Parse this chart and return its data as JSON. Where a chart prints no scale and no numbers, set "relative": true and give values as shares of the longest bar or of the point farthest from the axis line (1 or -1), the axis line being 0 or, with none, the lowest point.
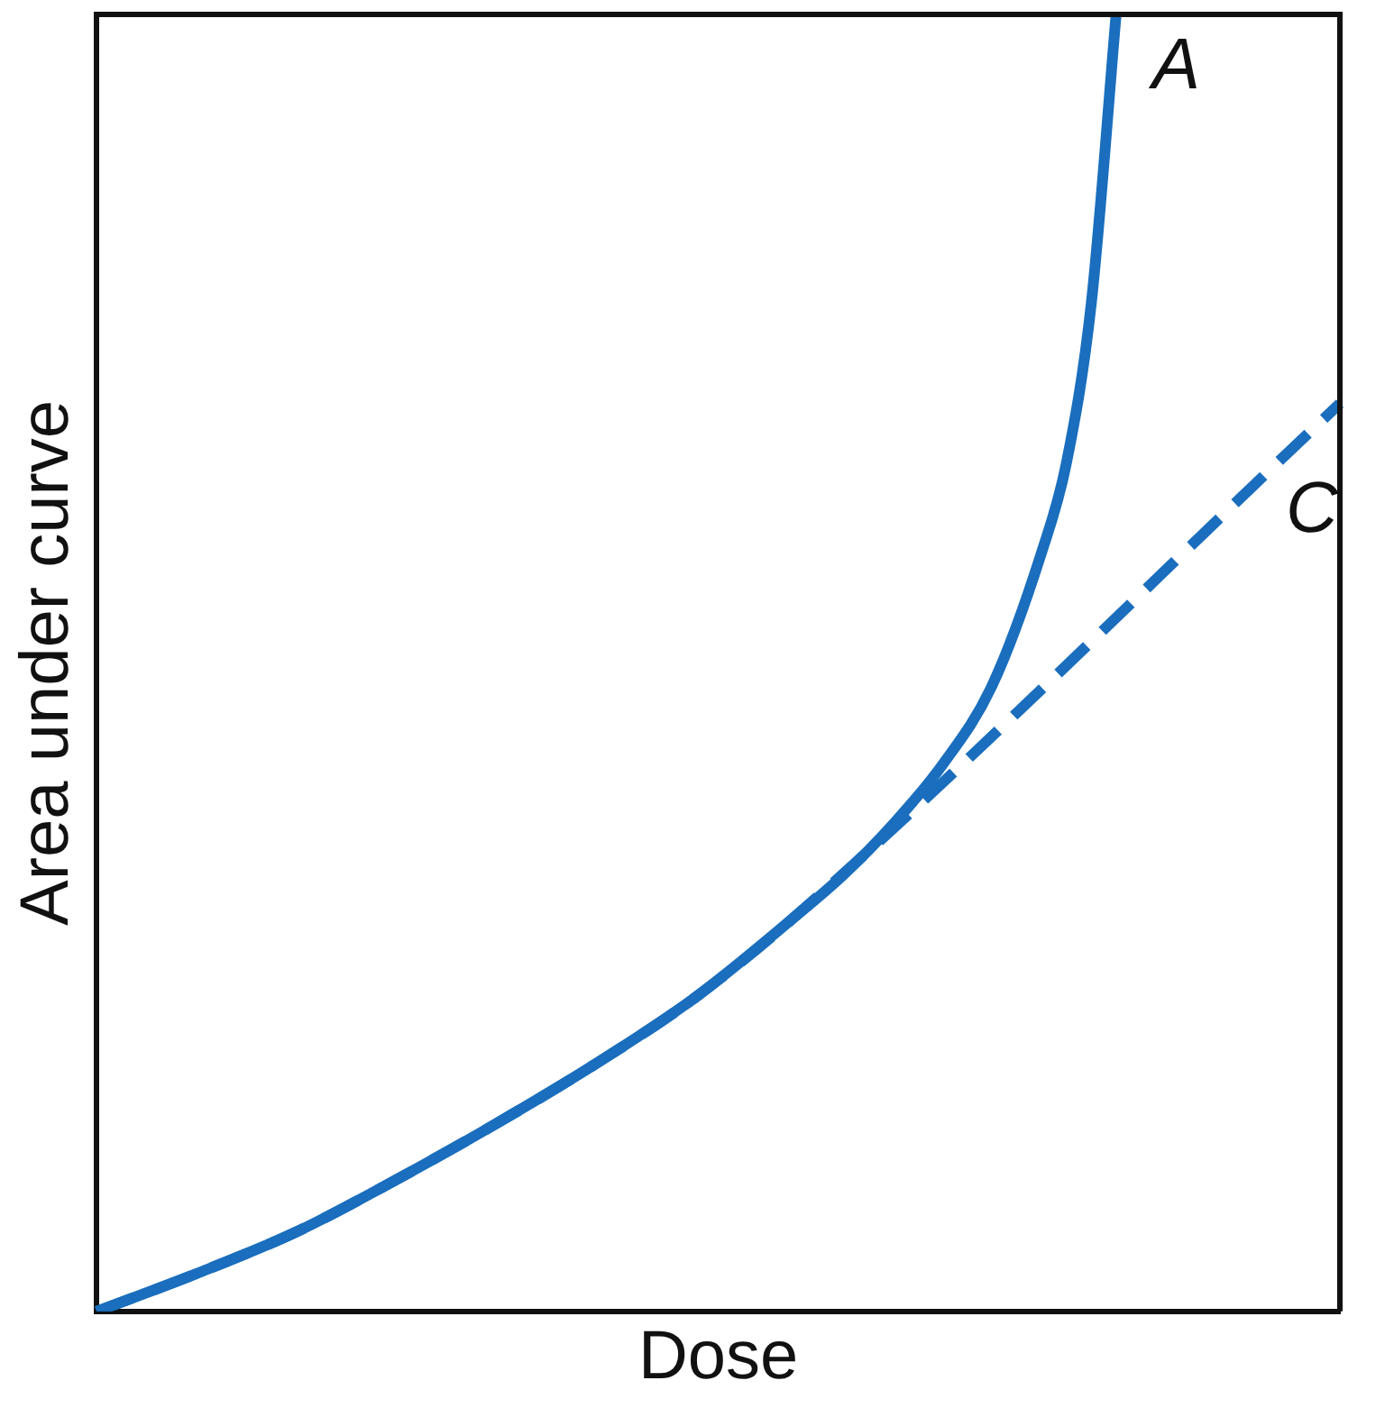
{
  "chart_data": {
    "type": "line",
    "xlabel": "Dose",
    "ylabel": "Area under curve",
    "relative": true,
    "grid": false,
    "legend": false,
    "marker": "none",
    "categories": [
      null,
      null,
      null,
      null,
      null,
      null,
      null,
      null,
      null,
      null,
      null,
      null,
      null,
      null,
      null,
      null,
      null,
      null,
      null,
      null,
      null,
      null,
      null,
      null,
      null,
      null,
      null,
      null,
      null,
      null,
      null,
      null,
      null,
      null,
      null,
      null,
      null,
      null,
      null,
      null,
      null,
      null,
      null,
      null,
      null,
      null,
      null,
      null,
      null,
      null,
      null
    ],
    "series": [
      {
        "name": "A",
        "color": "#1a6ebd",
        "line_style": "solid",
        "values": [
          0,
          null,
          null,
          null,
          0.029,
          null,
          null,
          null,
          0.061,
          null,
          null,
          null,
          0.101,
          null,
          null,
          null,
          0.144,
          null,
          null,
          null,
          0.19,
          null,
          null,
          null,
          0.241,
          null,
          null,
          null,
          0.303,
          null,
          0.336,
          null,
          0.375,
          null,
          0.421,
          null,
          0.482,
          null,
          0.585,
          0.654,
          0.777,
          1.0,
          null,
          null,
          null,
          null,
          null,
          null,
          null,
          null,
          null
        ]
      },
      {
        "name": "C",
        "color": "#1a6ebd",
        "line_style": "dashed",
        "values": [
          0,
          null,
          null,
          null,
          0.029,
          null,
          null,
          null,
          0.061,
          null,
          null,
          null,
          0.101,
          null,
          null,
          null,
          0.144,
          null,
          null,
          null,
          0.19,
          null,
          null,
          null,
          0.241,
          null,
          null,
          null,
          0.303,
          null,
          null,
          null,
          null,
          null,
          null,
          null,
          null,
          null,
          null,
          null,
          null,
          null,
          null,
          null,
          null,
          null,
          null,
          null,
          null,
          null,
          0.7
        ]
      }
    ]
  }
}
